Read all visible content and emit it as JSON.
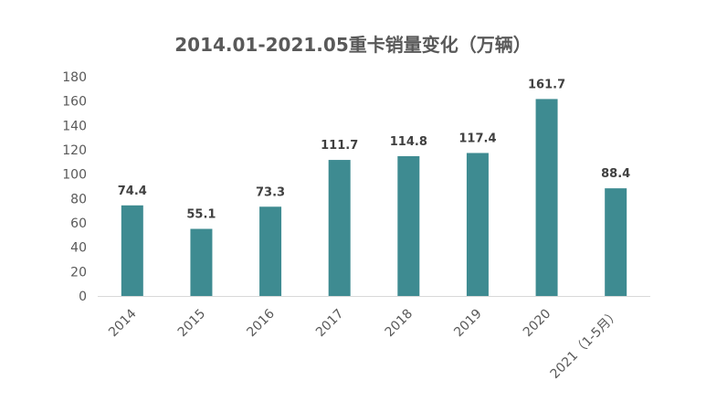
{
  "chart_data": {
    "type": "bar",
    "title": "2014.01-2021.05重卡销量变化（万辆）",
    "xlabel": "",
    "ylabel": "",
    "categories": [
      "2014",
      "2015",
      "2016",
      "2017",
      "2018",
      "2019",
      "2020",
      "2021（1-5月）"
    ],
    "values": [
      74.4,
      55.1,
      73.3,
      111.7,
      114.8,
      117.4,
      161.7,
      88.4
    ],
    "data_labels": [
      "74.4",
      "55.1",
      "73.3",
      "111.7",
      "114.8",
      "117.4",
      "161.7",
      "88.4"
    ],
    "ylim": [
      0,
      180
    ],
    "yticks": [
      0,
      20,
      40,
      60,
      80,
      100,
      120,
      140,
      160,
      180
    ],
    "grid": false,
    "legend": "none",
    "colors": {
      "bar": "#3e8b91",
      "axis": "#d9d9d9",
      "text": "#595959"
    }
  }
}
